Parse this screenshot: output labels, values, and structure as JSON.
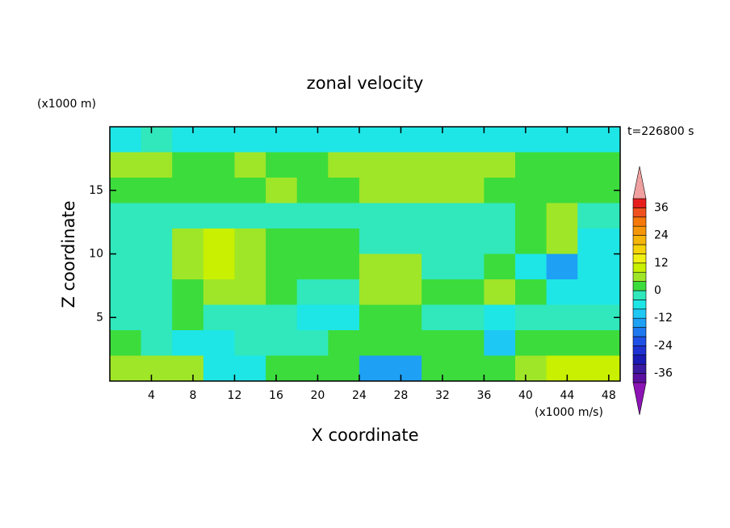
{
  "chart_data": {
    "type": "contour",
    "title": "zonal velocity",
    "y_unit": "(x1000 m)",
    "time_label": "t=226800 s",
    "ylabel": "Z coordinate",
    "xlabel": "X coordinate",
    "colorbar_unit": "(x1000 m/s)",
    "xlim": [
      0,
      49.1
    ],
    "ylim": [
      0,
      20
    ],
    "xticks": [
      4,
      8,
      12,
      16,
      20,
      24,
      28,
      32,
      36,
      40,
      44,
      48
    ],
    "yticks": [
      5,
      10,
      15
    ],
    "x": [
      1.5,
      4.5,
      7.5,
      10.5,
      13.5,
      16.5,
      19.5,
      22.5,
      25.5,
      28.5,
      31.5,
      34.5,
      37.5,
      40.5,
      43.5,
      46.5
    ],
    "y": [
      19,
      17,
      15,
      13,
      11,
      9,
      7,
      5,
      3,
      1
    ],
    "z": [
      [
        -5,
        -4,
        -5,
        -6,
        -6,
        -6,
        -5,
        -5,
        -5,
        -5,
        -5,
        -5,
        -5,
        -5,
        -6,
        -6
      ],
      [
        6,
        6,
        2,
        2,
        6,
        2,
        2,
        6,
        6,
        6,
        6,
        6,
        6,
        2,
        2,
        2
      ],
      [
        2,
        2,
        2,
        2,
        2,
        6,
        2,
        2,
        6,
        6,
        6,
        6,
        2,
        2,
        2,
        2
      ],
      [
        -2,
        -2,
        -2,
        -2,
        -2,
        -2,
        -2,
        -2,
        -2,
        -2,
        -2,
        -2,
        -2,
        2,
        6,
        -2
      ],
      [
        -2,
        -2,
        6,
        10,
        6,
        2,
        2,
        2,
        -2,
        -2,
        -2,
        -2,
        -2,
        2,
        6,
        -6
      ],
      [
        -2,
        -2,
        6,
        10,
        6,
        2,
        2,
        2,
        6,
        6,
        -2,
        -2,
        2,
        -6,
        -16,
        -8
      ],
      [
        -2,
        -2,
        2,
        6,
        6,
        2,
        -4,
        -4,
        6,
        6,
        2,
        2,
        6,
        2,
        -8,
        -6
      ],
      [
        -3,
        -3,
        2,
        -3,
        -3,
        -3,
        -6,
        -6,
        2,
        2,
        -2,
        -2,
        -8,
        -3,
        -3,
        -3
      ],
      [
        2,
        -2,
        -6,
        -6,
        -2,
        -2,
        -2,
        2,
        2,
        2,
        2,
        2,
        -10,
        2,
        2,
        2
      ],
      [
        4,
        6,
        4,
        -8,
        -8,
        2,
        2,
        2,
        -14,
        -14,
        2,
        2,
        2,
        6,
        10,
        8
      ]
    ],
    "levels": [
      -40,
      -36,
      -32,
      -28,
      -24,
      -20,
      -16,
      -12,
      -8,
      -4,
      0,
      4,
      8,
      12,
      16,
      20,
      24,
      28,
      32,
      36,
      40
    ],
    "colors": [
      "#5a0f9e",
      "#3a1aa0",
      "#1a1ab4",
      "#1e32d2",
      "#1e50e6",
      "#1e78f0",
      "#1ea0f5",
      "#1ec8f5",
      "#1ee6e6",
      "#30e8bc",
      "#3cdc3c",
      "#a0e628",
      "#c8f000",
      "#f0f014",
      "#f5d20a",
      "#f5b40a",
      "#f5960a",
      "#f5780a",
      "#f0501e",
      "#e61e1e"
    ],
    "extend_colors": [
      "#8c14b4",
      "#f0a0a0"
    ],
    "colorbar_ticks": [
      -36,
      -24,
      -12,
      0,
      12,
      24,
      36
    ]
  }
}
